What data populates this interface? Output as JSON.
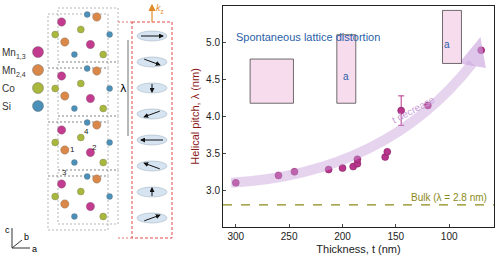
{
  "diagram": {
    "legend": [
      {
        "symbol": "Mn",
        "sub": "1,3",
        "color": "#c23b8f"
      },
      {
        "symbol": "Mn",
        "sub": "2,4",
        "color": "#d9884a"
      },
      {
        "symbol": "Co",
        "color": "#a9b83c"
      },
      {
        "symbol": "Si",
        "color": "#4a90b8"
      }
    ],
    "atom_numbers": [
      "1",
      "2",
      "3",
      "4"
    ],
    "axes": [
      "c",
      "b",
      "a"
    ],
    "wavevector": {
      "symbol": "k",
      "sub": "z"
    },
    "pitch": "λ"
  },
  "chart_data": {
    "type": "scatter",
    "x_label": "Thickness, t (nm)",
    "y_label": "Helical pitch, λ (nm)",
    "x": [
      300,
      260,
      245,
      213,
      200,
      190,
      186,
      186,
      160,
      158,
      145,
      120,
      70
    ],
    "series": [
      {
        "color": "#b8358c",
        "marker": "circle",
        "values": [
          3.1,
          3.2,
          3.25,
          3.28,
          3.3,
          3.32,
          3.36,
          3.42,
          3.45,
          3.52,
          4.08,
          4.15,
          4.9
        ],
        "error": [
          null,
          null,
          null,
          null,
          null,
          null,
          null,
          null,
          null,
          null,
          0.2,
          null,
          null
        ]
      }
    ],
    "xlim": [
      312,
      58
    ],
    "xticks": [
      300,
      250,
      200,
      150,
      100
    ],
    "ylim": [
      2.5,
      5.5
    ],
    "yticks": [
      {
        "value": 3,
        "label": "3.0"
      },
      {
        "value": 3.5,
        "label": "3.5"
      },
      {
        "value": 4,
        "label": "4.0"
      },
      {
        "value": 4.5,
        "label": "4.5"
      },
      {
        "value": 5,
        "label": "5.0"
      }
    ],
    "reference_line": {
      "value": 2.8,
      "label": "Bulk (λ = 2.8 nm)",
      "color": "#8a8a1a",
      "line_style": "dash"
    },
    "annotations": [
      "Spontaneous lattice distortion",
      "t decrease"
    ],
    "inset_labels": [
      "a",
      "a"
    ],
    "grid": false
  }
}
